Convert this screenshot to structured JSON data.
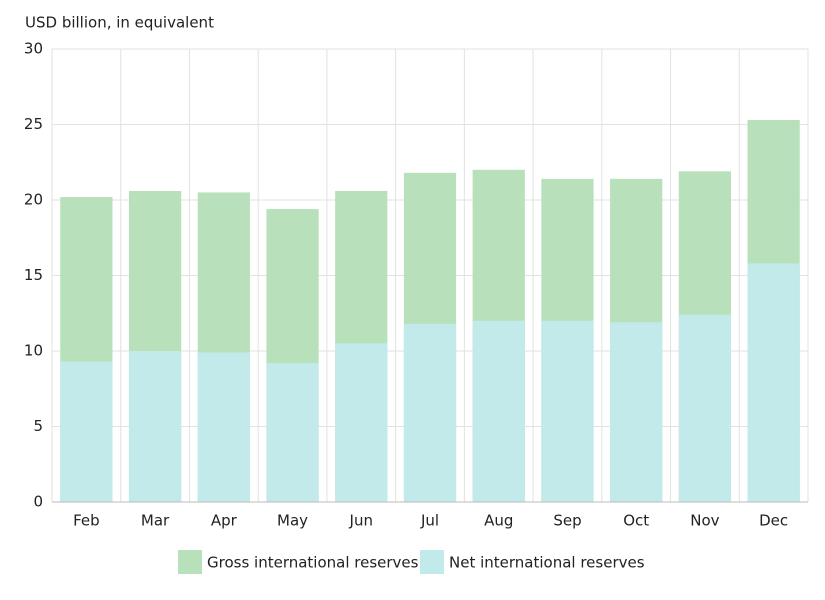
{
  "chart_data": {
    "type": "bar",
    "y_label": "USD billion, in equivalent",
    "categories": [
      "Feb",
      "Mar",
      "Apr",
      "May",
      "Jun",
      "Jul",
      "Aug",
      "Sep",
      "Oct",
      "Nov",
      "Dec"
    ],
    "series": [
      {
        "name": "Gross international reserves",
        "color": "#b8e0ba",
        "values": [
          20.2,
          20.6,
          20.5,
          19.4,
          20.6,
          21.8,
          22.0,
          21.4,
          21.4,
          21.9,
          25.3
        ]
      },
      {
        "name": "Net international reserves",
        "color": "#c2eaea",
        "values": [
          9.3,
          10.0,
          9.9,
          9.2,
          10.5,
          11.8,
          12.0,
          12.0,
          11.9,
          12.4,
          15.8
        ]
      }
    ],
    "ylim": [
      0,
      30
    ],
    "yticks": [
      0,
      5,
      10,
      15,
      20,
      25,
      30
    ],
    "grid": true,
    "legend": "bottom"
  }
}
